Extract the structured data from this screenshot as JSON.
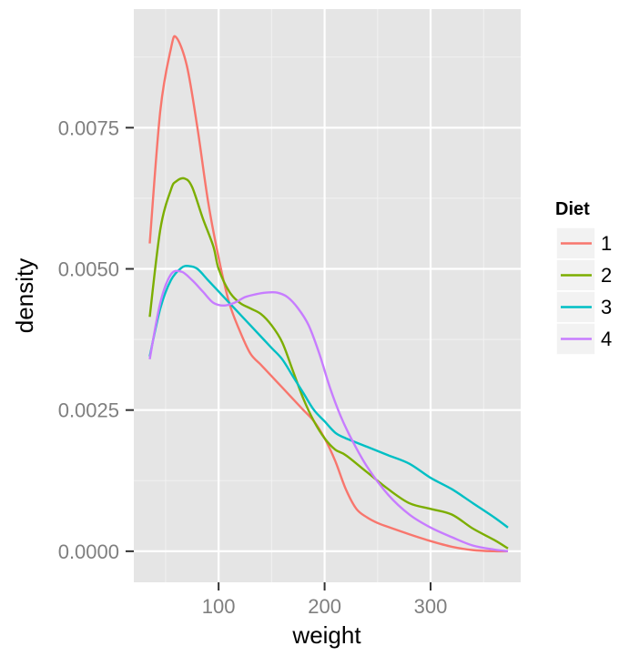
{
  "chart_data": {
    "type": "line",
    "title": "",
    "xlabel": "weight",
    "ylabel": "density",
    "xlim": [
      20,
      385
    ],
    "ylim": [
      -0.00055,
      0.0096
    ],
    "xticks": [
      100,
      200,
      300
    ],
    "xtick_labels": [
      "100",
      "200",
      "300"
    ],
    "yticks": [
      0.0,
      0.0025,
      0.005,
      0.0075
    ],
    "ytick_labels": [
      "0.0000",
      "0.0025",
      "0.0050",
      "0.0075"
    ],
    "grid": true,
    "legend": {
      "title": "Diet",
      "position": "right"
    },
    "series": [
      {
        "name": "1",
        "color": "#F8766D",
        "x": [
          35,
          45,
          55,
          60,
          70,
          80,
          90,
          100,
          110,
          120,
          130,
          140,
          150,
          160,
          170,
          180,
          190,
          200,
          210,
          220,
          230,
          240,
          250,
          260,
          280,
          300,
          320,
          340,
          360,
          373
        ],
        "y": [
          0.00545,
          0.0078,
          0.0089,
          0.0091,
          0.0086,
          0.0075,
          0.0062,
          0.0052,
          0.0044,
          0.0039,
          0.0035,
          0.0033,
          0.0031,
          0.0029,
          0.0027,
          0.0025,
          0.0023,
          0.002,
          0.0016,
          0.0011,
          0.00075,
          0.0006,
          0.0005,
          0.00043,
          0.0003,
          0.00018,
          8e-05,
          2e-05,
          0.0,
          0.0
        ]
      },
      {
        "name": "2",
        "color": "#7CAE00",
        "x": [
          35,
          45,
          55,
          60,
          68,
          75,
          85,
          95,
          100,
          110,
          120,
          130,
          140,
          150,
          160,
          170,
          180,
          190,
          200,
          210,
          220,
          240,
          260,
          280,
          300,
          320,
          340,
          360,
          373
        ],
        "y": [
          0.00415,
          0.0057,
          0.0064,
          0.00655,
          0.0066,
          0.00645,
          0.0059,
          0.0054,
          0.005,
          0.0046,
          0.0044,
          0.0043,
          0.0042,
          0.004,
          0.0037,
          0.0032,
          0.0027,
          0.0023,
          0.002,
          0.0018,
          0.0017,
          0.0014,
          0.0011,
          0.00085,
          0.00075,
          0.00065,
          0.0004,
          0.0002,
          5e-05
        ]
      },
      {
        "name": "3",
        "color": "#00BFC4",
        "x": [
          35,
          45,
          55,
          65,
          72,
          80,
          90,
          100,
          110,
          120,
          130,
          140,
          150,
          160,
          170,
          180,
          190,
          200,
          210,
          220,
          240,
          260,
          280,
          300,
          320,
          340,
          360,
          373
        ],
        "y": [
          0.00345,
          0.0043,
          0.0048,
          0.00502,
          0.00505,
          0.005,
          0.0048,
          0.0046,
          0.0044,
          0.0042,
          0.004,
          0.0038,
          0.0036,
          0.0034,
          0.0031,
          0.0028,
          0.0025,
          0.0023,
          0.0021,
          0.002,
          0.00185,
          0.0017,
          0.00155,
          0.0013,
          0.0011,
          0.00085,
          0.0006,
          0.00042
        ]
      },
      {
        "name": "4",
        "color": "#C77CFF",
        "x": [
          35,
          45,
          55,
          65,
          75,
          85,
          95,
          105,
          115,
          125,
          135,
          145,
          155,
          165,
          175,
          185,
          195,
          205,
          215,
          225,
          240,
          260,
          280,
          300,
          320,
          340,
          360,
          373
        ],
        "y": [
          0.0034,
          0.0044,
          0.0049,
          0.00495,
          0.0048,
          0.0046,
          0.0044,
          0.00435,
          0.0044,
          0.0045,
          0.00455,
          0.00458,
          0.00458,
          0.0045,
          0.0043,
          0.004,
          0.0035,
          0.0029,
          0.0024,
          0.002,
          0.0015,
          0.001,
          0.00065,
          0.00042,
          0.00025,
          0.0001,
          3e-05,
          0.0
        ]
      }
    ]
  }
}
